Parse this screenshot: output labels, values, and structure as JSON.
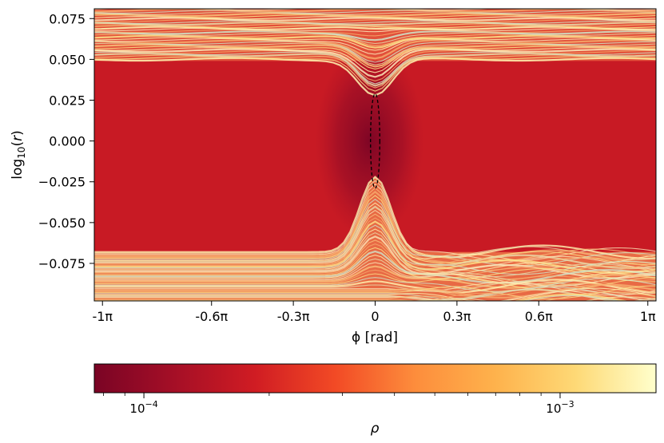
{
  "chart_data": {
    "type": "heatmap",
    "title": "",
    "x_axis": {
      "label": "ϕ [rad]",
      "range": [
        -1.03,
        1.03
      ],
      "units": "π rad",
      "ticks": [
        {
          "value": -1.0,
          "label": "-1π"
        },
        {
          "value": -0.6,
          "label": "-0.6π"
        },
        {
          "value": -0.3,
          "label": "-0.3π"
        },
        {
          "value": 0.0,
          "label": "0"
        },
        {
          "value": 0.3,
          "label": "0.3π"
        },
        {
          "value": 0.6,
          "label": "0.6π"
        },
        {
          "value": 1.0,
          "label": "1π"
        }
      ]
    },
    "y_axis": {
      "label": "log10(r)",
      "range": [
        -0.098,
        0.081
      ],
      "ticks": [
        {
          "value": 0.075,
          "label": "0.075"
        },
        {
          "value": 0.05,
          "label": "0.050"
        },
        {
          "value": 0.025,
          "label": "0.025"
        },
        {
          "value": 0.0,
          "label": "0.000"
        },
        {
          "value": -0.025,
          "label": "−0.025"
        },
        {
          "value": -0.05,
          "label": "−0.050"
        },
        {
          "value": -0.075,
          "label": "−0.075"
        }
      ]
    },
    "colorbar": {
      "label": "ρ",
      "scale": "log",
      "colormap": "YlOrRd_r",
      "range": [
        7.6e-05,
        0.0017
      ],
      "colors": [
        "#7a0425",
        "#a50f26",
        "#d01c23",
        "#f24a25",
        "#fd8d3c",
        "#feb24c",
        "#fed976",
        "#ffffcc"
      ],
      "ticks": [
        {
          "value": 0.0001,
          "label": "10",
          "exp": "−4"
        },
        {
          "value": 0.001,
          "label": "10",
          "exp": "−3"
        }
      ]
    },
    "background_color": "#c81a24",
    "features": {
      "ellipse": {
        "x_center": 0.0,
        "y_center": 0.0,
        "x_halfwidth": 0.017,
        "y_halfwidth": 0.029,
        "style": "dashed",
        "color": "#000000"
      },
      "upper_band_edge": {
        "at_zero": 0.028,
        "far": 0.05
      },
      "lower_band_edge": {
        "at_zero": -0.022,
        "far": -0.068
      }
    }
  }
}
